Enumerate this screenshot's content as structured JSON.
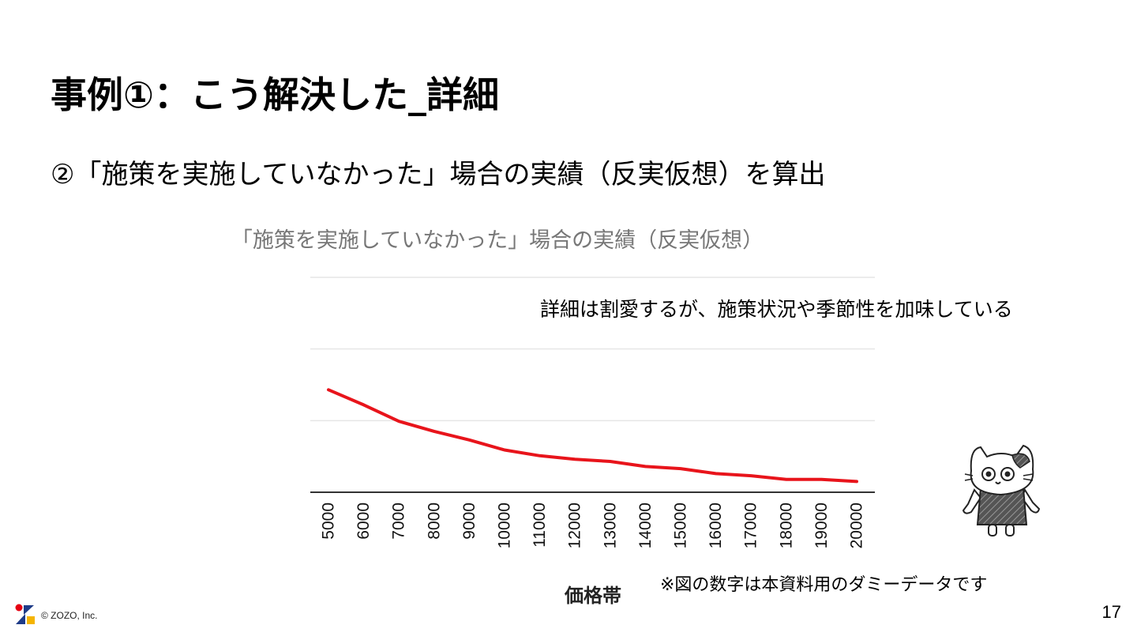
{
  "slide": {
    "title": "事例①：こう解決した_詳細",
    "subtitle": "②「施策を実施していなかった」場合の実績（反実仮想）を算出",
    "note": "詳細は割愛するが、施策状況や季節性を加味している",
    "disclaimer": "※図の数字は本資料用のダミーデータです",
    "copyright": "© ZOZO, Inc.",
    "page_number": "17"
  },
  "colors": {
    "line": "#e8141b",
    "grid": "#e6e6e6",
    "axis": "#333333",
    "chart_title": "#777777",
    "logo_red": "#e60012",
    "logo_blue": "#1f3c88",
    "logo_yellow": "#f5b400"
  },
  "chart_data": {
    "type": "line",
    "title": "「施策を実施していなかった」場合の実績（反実仮想）",
    "xlabel": "価格帯",
    "ylabel": "",
    "categories": [
      "5000",
      "6000",
      "7000",
      "8000",
      "9000",
      "10000",
      "11000",
      "12000",
      "13000",
      "14000",
      "15000",
      "16000",
      "17000",
      "18000",
      "19000",
      "20000"
    ],
    "series": [
      {
        "values": [
          143,
          122,
          99,
          85,
          73,
          59,
          51,
          46,
          43,
          36,
          33,
          26,
          23,
          18,
          18,
          15
        ]
      }
    ],
    "ylim": [
      0,
      300
    ],
    "y_ticks_labeled": false,
    "grid": true,
    "legend": "none"
  }
}
